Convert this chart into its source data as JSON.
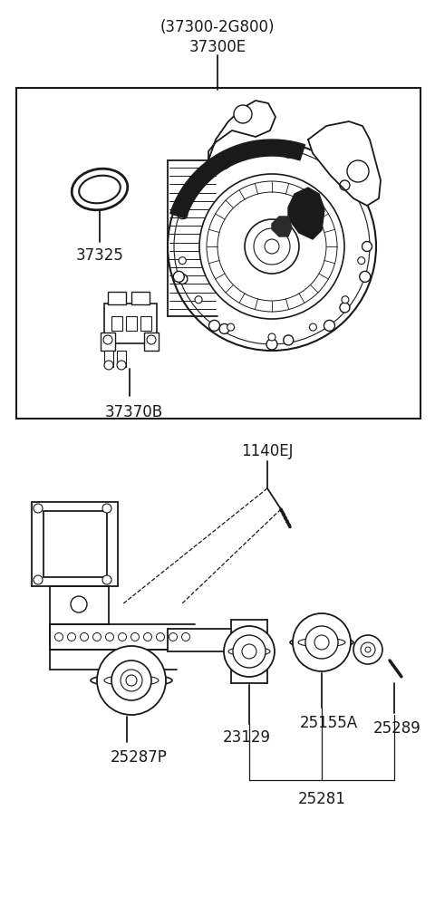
{
  "bg_color": "#ffffff",
  "lc": "#1a1a1a",
  "title1": "(37300-2G800)",
  "title2": "37300E",
  "lbl_37325": "37325",
  "lbl_37370B": "37370B",
  "lbl_1140EJ": "1140EJ",
  "lbl_25287P": "25287P",
  "lbl_23129": "23129",
  "lbl_25155A": "25155A",
  "lbl_25289": "25289",
  "lbl_25281": "25281",
  "fig_w": 4.8,
  "fig_h": 10.12,
  "dpi": 100
}
